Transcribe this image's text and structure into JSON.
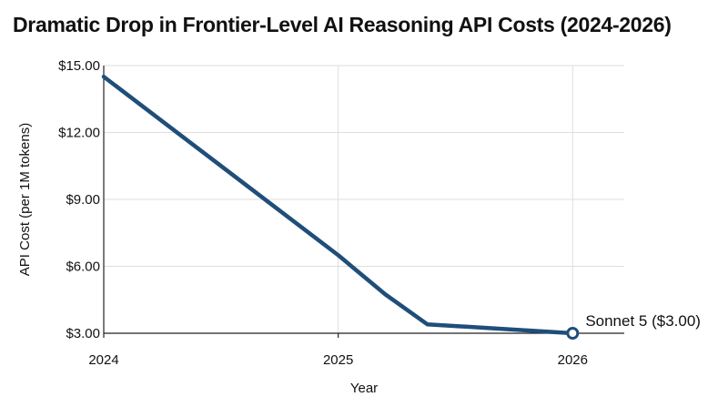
{
  "chart_data": {
    "type": "line",
    "title": "Dramatic Drop in Frontier-Level AI Reasoning API Costs (2024-2026)",
    "xlabel": "Year",
    "ylabel": "API Cost (per 1M tokens)",
    "xlim": [
      2024,
      2026.22
    ],
    "ylim": [
      3,
      15
    ],
    "x_ticks": [
      2024,
      2025,
      2026
    ],
    "x_tick_labels": [
      "2024",
      "2025",
      "2026"
    ],
    "y_ticks": [
      3,
      6,
      9,
      12,
      15
    ],
    "y_tick_labels": [
      "$3.00",
      "$6.00",
      "$9.00",
      "$12.00",
      "$15.00"
    ],
    "grid": true,
    "series": [
      {
        "color": "#1f4e79",
        "x": [
          2024,
          2025,
          2025.2,
          2025.38,
          2026
        ],
        "y": [
          14.5,
          6.5,
          4.75,
          3.4,
          3.0
        ]
      }
    ],
    "annotation": {
      "text": "Sonnet 5 ($3.00)",
      "x": 2026,
      "y": 3.0
    }
  }
}
